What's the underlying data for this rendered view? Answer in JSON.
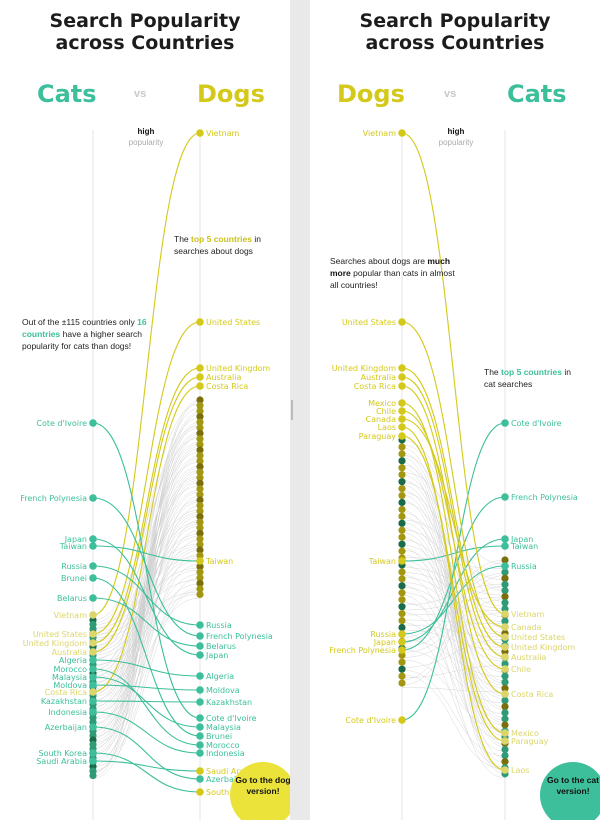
{
  "left": {
    "title_line1": "Search Popularity",
    "title_line2": "across Countries",
    "left_word": "Cats",
    "vs": "vs",
    "right_word": "Dogs",
    "high": "high",
    "popularity": "popularity",
    "annotation": {
      "p1": "Out of the ±115 countries only",
      "highlight": "16 countries",
      "p2": "have a higher search popularity for cats than dogs!"
    },
    "annotation2": {
      "p1": "The",
      "highlight": "top 5 countries",
      "p2": "in searches about dogs"
    },
    "corner": "Go to the dog version!",
    "left_labels": [
      "Cote d'Ivoire",
      "French Polynesia",
      "Japan",
      "Taiwan",
      "Russia",
      "Brunei",
      "Belarus",
      "Vietnam",
      "United States",
      "United Kingdom",
      "Australia",
      "Algeria",
      "Morocco",
      "Malaysia",
      "Moldova",
      "Costa Rica",
      "Kazakhstan",
      "Indonesia",
      "Azerbaijan",
      "South Korea",
      "Saudi Arabia"
    ],
    "right_labels": [
      "Vietnam",
      "United States",
      "United Kingdom",
      "Australia",
      "Costa Rica",
      "Taiwan",
      "Russia",
      "French Polynesia",
      "Belarus",
      "Japan",
      "Algeria",
      "Moldova",
      "Kazakhstan",
      "Cote d'Ivoire",
      "Malaysia",
      "Brunei",
      "Morocco",
      "Indonesia",
      "Saudi Arabia",
      "Azerbaijan",
      "South"
    ]
  },
  "right": {
    "title_line1": "Search Popularity",
    "title_line2": "across Countries",
    "left_word": "Dogs",
    "vs": "vs",
    "right_word": "Cats",
    "high": "high",
    "popularity": "popularity",
    "annotation": {
      "p1": "Searches about dogs are",
      "highlight": "much more",
      "p2": "popular than cats in almost all countries!"
    },
    "annotation2": {
      "p1": "The",
      "highlight": "top 5 countries",
      "p2": "in cat searches"
    },
    "corner": "Go to the cat version!",
    "left_labels": [
      "Vietnam",
      "United States",
      "United Kingdom",
      "Australia",
      "Costa Rica",
      "Mexico",
      "Chile",
      "Canada",
      "Laos",
      "Paraguay",
      "Taiwan",
      "Russia",
      "Japan",
      "French Polynesia",
      "Cote d'Ivoire"
    ],
    "right_labels": [
      "Cote d'Ivoire",
      "French Polynesia",
      "Japan",
      "Taiwan",
      "Russia",
      "Vietnam",
      "Canada",
      "United States",
      "United Kingdom",
      "Australia",
      "Chile",
      "Costa Rica",
      "Mexico",
      "Paraguay",
      "Laos"
    ]
  },
  "colors": {
    "cat": "#3cbf9a",
    "dog": "#d4c91a",
    "dot_dark": "#1a6b4a",
    "line_grey": "#c8c8c8"
  }
}
